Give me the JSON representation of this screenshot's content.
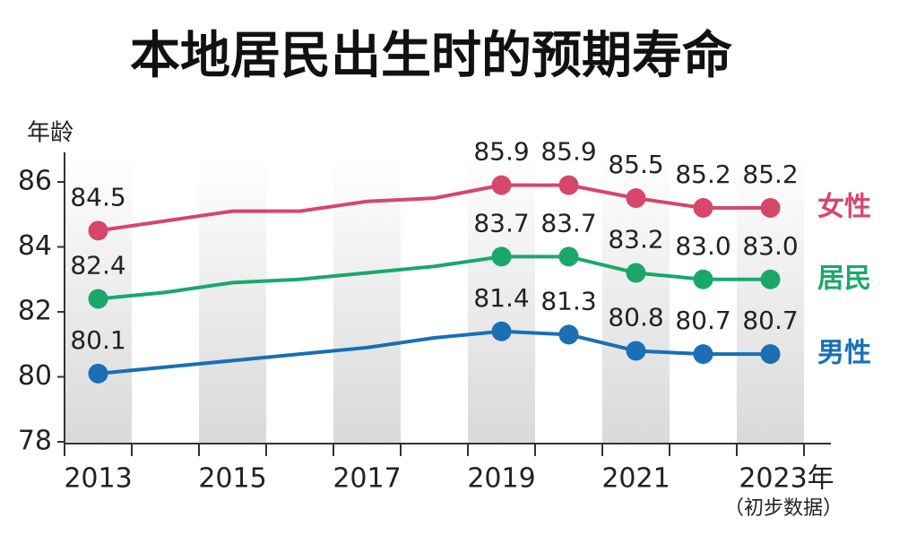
{
  "chart_data": {
    "type": "line",
    "title": "本地居民出生时的预期寿命",
    "y_label": "年龄",
    "note": "（初步数据）",
    "categories": [
      "2013",
      null,
      "2015",
      null,
      "2017",
      null,
      "2019",
      null,
      "2021",
      null,
      "2023年"
    ],
    "series": [
      {
        "name": "女性",
        "color": "#d6476b",
        "values": [
          84.5,
          84.8,
          85.1,
          85.1,
          85.4,
          85.5,
          85.9,
          85.9,
          85.5,
          85.2,
          85.2
        ],
        "value_labels": [
          "84.5",
          null,
          null,
          null,
          null,
          null,
          "85.9",
          "85.9",
          "85.5",
          "85.2",
          "85.2"
        ]
      },
      {
        "name": "居民",
        "color": "#1aa86a",
        "values": [
          82.4,
          82.6,
          82.9,
          83.0,
          83.2,
          83.4,
          83.7,
          83.7,
          83.2,
          83.0,
          83.0
        ],
        "value_labels": [
          "82.4",
          null,
          null,
          null,
          null,
          null,
          "83.7",
          "83.7",
          "83.2",
          "83.0",
          "83.0"
        ]
      },
      {
        "name": "男性",
        "color": "#1a6fb5",
        "values": [
          80.1,
          80.3,
          80.5,
          80.7,
          80.9,
          81.2,
          81.4,
          81.3,
          80.8,
          80.7,
          80.7
        ],
        "value_labels": [
          "80.1",
          null,
          null,
          null,
          null,
          null,
          "81.4",
          "81.3",
          "80.8",
          "80.7",
          "80.7"
        ]
      }
    ],
    "ylim": [
      78,
      87
    ],
    "yticks": [
      78,
      80,
      82,
      84,
      86
    ]
  }
}
